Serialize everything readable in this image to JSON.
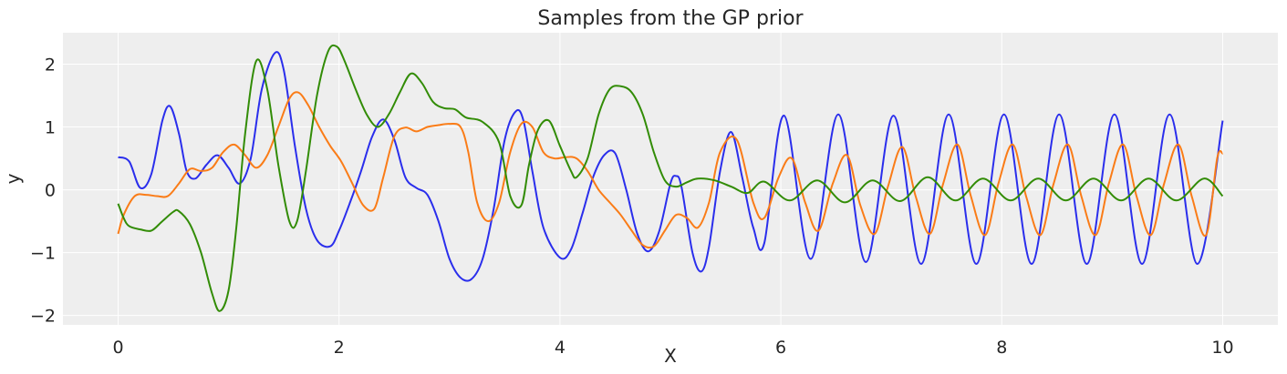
{
  "chart_data": {
    "type": "line",
    "title": "Samples from the GP prior",
    "xlabel": "X",
    "ylabel": "y",
    "xlim": [
      -0.5,
      10.5
    ],
    "ylim": [
      -2.15,
      2.5
    ],
    "xticks": [
      0,
      2,
      4,
      6,
      8,
      10
    ],
    "xtick_labels": [
      "0",
      "2",
      "4",
      "6",
      "8",
      "10"
    ],
    "yticks": [
      -2,
      -1,
      0,
      1,
      2
    ],
    "ytick_labels": [
      "−2",
      "−1",
      "0",
      "1",
      "2"
    ],
    "grid": true,
    "series": [
      {
        "color": "#2a2eec",
        "x": [
          0,
          0.1,
          0.2,
          0.3,
          0.4,
          0.47,
          0.55,
          0.62,
          0.7,
          0.8,
          0.9,
          1.0,
          1.1,
          1.2,
          1.3,
          1.42,
          1.5,
          1.6,
          1.7,
          1.8,
          1.92,
          2.0,
          2.1,
          2.2,
          2.3,
          2.4,
          2.5,
          2.6,
          2.7,
          2.8,
          2.9,
          3.0,
          3.1,
          3.2,
          3.3,
          3.4,
          3.5,
          3.6,
          3.67,
          3.75,
          3.85,
          4.0,
          4.1,
          4.2,
          4.3,
          4.4,
          4.5,
          4.6,
          4.7,
          4.8,
          4.9,
          5.0,
          5.05,
          5.1,
          5.2,
          5.28,
          5.35,
          5.45,
          5.55,
          5.65,
          5.75,
          5.85,
          6.03,
          6.27,
          6.52,
          6.77,
          7.02,
          7.27,
          7.52,
          7.77,
          8.02,
          8.27,
          8.52,
          8.77,
          9.02,
          9.27,
          9.52,
          9.77,
          10.0
        ],
        "y": [
          0.52,
          0.45,
          0.03,
          0.25,
          1.1,
          1.33,
          0.9,
          0.3,
          0.18,
          0.4,
          0.55,
          0.35,
          0.1,
          0.5,
          1.6,
          2.18,
          1.9,
          0.7,
          -0.3,
          -0.8,
          -0.9,
          -0.65,
          -0.2,
          0.3,
          0.85,
          1.12,
          0.8,
          0.2,
          0.03,
          -0.08,
          -0.5,
          -1.1,
          -1.4,
          -1.42,
          -1.1,
          -0.3,
          0.8,
          1.25,
          1.1,
          0.3,
          -0.6,
          -1.08,
          -0.95,
          -0.4,
          0.2,
          0.55,
          0.58,
          0.0,
          -0.7,
          -0.98,
          -0.65,
          0.1,
          0.22,
          0.05,
          -1.0,
          -1.3,
          -0.9,
          0.3,
          0.92,
          0.2,
          -0.6,
          -0.85,
          1.18,
          -1.1,
          1.2,
          -1.15,
          1.18,
          -1.18,
          1.2,
          -1.18,
          1.2,
          -1.18,
          1.2,
          -1.18,
          1.2,
          -1.18,
          1.2,
          -1.18,
          1.1
        ]
      },
      {
        "color": "#fa7c17",
        "x": [
          0,
          0.05,
          0.15,
          0.25,
          0.35,
          0.45,
          0.55,
          0.65,
          0.75,
          0.85,
          0.95,
          1.05,
          1.15,
          1.25,
          1.35,
          1.45,
          1.55,
          1.63,
          1.72,
          1.82,
          1.92,
          2.02,
          2.12,
          2.22,
          2.32,
          2.4,
          2.5,
          2.6,
          2.7,
          2.8,
          2.9,
          3.0,
          3.1,
          3.17,
          3.25,
          3.35,
          3.45,
          3.55,
          3.65,
          3.75,
          3.85,
          3.95,
          4.05,
          4.15,
          4.25,
          4.35,
          4.45,
          4.55,
          4.65,
          4.75,
          4.85,
          4.95,
          5.05,
          5.15,
          5.25,
          5.35,
          5.45,
          5.6,
          5.75,
          5.85,
          5.98,
          6.1,
          6.22,
          6.34,
          6.47,
          6.6,
          6.72,
          6.85,
          6.97,
          7.1,
          7.22,
          7.35,
          7.47,
          7.6,
          7.72,
          7.85,
          7.97,
          8.1,
          8.22,
          8.35,
          8.47,
          8.6,
          8.72,
          8.85,
          8.97,
          9.1,
          9.22,
          9.35,
          9.47,
          9.6,
          9.72,
          9.85,
          9.95,
          10.0
        ],
        "y": [
          -0.7,
          -0.4,
          -0.1,
          -0.08,
          -0.1,
          -0.1,
          0.1,
          0.33,
          0.3,
          0.35,
          0.6,
          0.72,
          0.55,
          0.35,
          0.55,
          1.0,
          1.45,
          1.55,
          1.35,
          1.0,
          0.7,
          0.45,
          0.1,
          -0.25,
          -0.3,
          0.2,
          0.85,
          0.99,
          0.93,
          1.0,
          1.03,
          1.05,
          1.0,
          0.6,
          -0.2,
          -0.5,
          -0.2,
          0.6,
          1.05,
          1.0,
          0.6,
          0.5,
          0.52,
          0.5,
          0.3,
          0.0,
          -0.2,
          -0.4,
          -0.65,
          -0.88,
          -0.9,
          -0.65,
          -0.4,
          -0.45,
          -0.6,
          -0.2,
          0.6,
          0.8,
          -0.2,
          -0.45,
          0.2,
          0.5,
          -0.2,
          -0.65,
          0.1,
          0.55,
          -0.25,
          -0.7,
          0.05,
          0.68,
          -0.1,
          -0.7,
          0.1,
          0.72,
          -0.1,
          -0.72,
          0.1,
          0.72,
          -0.1,
          -0.72,
          0.1,
          0.72,
          -0.1,
          -0.72,
          0.1,
          0.72,
          -0.1,
          -0.72,
          0.1,
          0.72,
          -0.1,
          -0.72,
          0.5,
          0.58
        ]
      },
      {
        "color": "#328c06",
        "x": [
          0,
          0.05,
          0.1,
          0.2,
          0.3,
          0.4,
          0.5,
          0.55,
          0.65,
          0.75,
          0.85,
          0.92,
          1.0,
          1.07,
          1.15,
          1.25,
          1.35,
          1.45,
          1.55,
          1.62,
          1.7,
          1.8,
          1.9,
          1.98,
          2.05,
          2.15,
          2.25,
          2.35,
          2.45,
          2.55,
          2.65,
          2.75,
          2.85,
          2.95,
          3.05,
          3.15,
          3.3,
          3.45,
          3.55,
          3.65,
          3.72,
          3.8,
          3.9,
          4.0,
          4.1,
          4.15,
          4.25,
          4.35,
          4.45,
          4.55,
          4.65,
          4.75,
          4.85,
          4.95,
          5.05,
          5.15,
          5.25,
          5.4,
          5.55,
          5.7,
          5.85,
          6.08,
          6.33,
          6.58,
          6.83,
          7.08,
          7.33,
          7.58,
          7.83,
          8.08,
          8.33,
          8.58,
          8.83,
          9.08,
          9.33,
          9.58,
          9.83,
          10.0
        ],
        "y": [
          -0.22,
          -0.45,
          -0.58,
          -0.63,
          -0.65,
          -0.5,
          -0.35,
          -0.34,
          -0.55,
          -1.0,
          -1.65,
          -1.93,
          -1.6,
          -0.6,
          0.9,
          2.05,
          1.6,
          0.4,
          -0.5,
          -0.5,
          0.3,
          1.5,
          2.2,
          2.28,
          2.05,
          1.6,
          1.2,
          1.0,
          1.2,
          1.55,
          1.85,
          1.7,
          1.4,
          1.3,
          1.28,
          1.15,
          1.08,
          0.75,
          -0.1,
          -0.25,
          0.4,
          0.95,
          1.1,
          0.7,
          0.3,
          0.2,
          0.5,
          1.2,
          1.6,
          1.65,
          1.55,
          1.2,
          0.6,
          0.15,
          0.05,
          0.12,
          0.18,
          0.15,
          0.05,
          -0.05,
          0.13,
          -0.17,
          0.15,
          -0.2,
          0.15,
          -0.18,
          0.2,
          -0.17,
          0.18,
          -0.17,
          0.18,
          -0.17,
          0.18,
          -0.17,
          0.18,
          -0.17,
          0.18,
          -0.1
        ]
      }
    ]
  }
}
